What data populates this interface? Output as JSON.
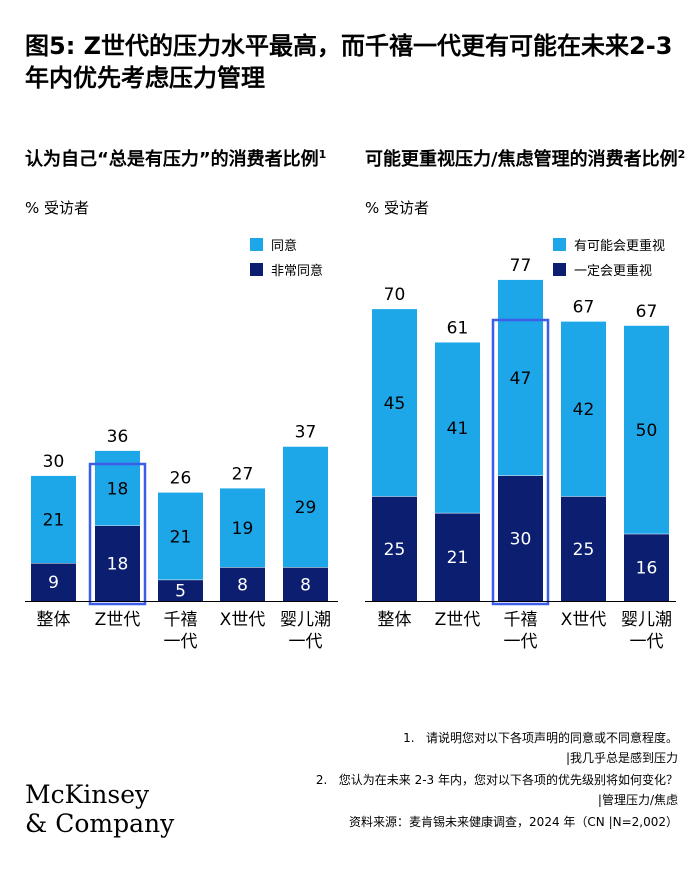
{
  "title": "图5: Z世代的压力水平最高，而千禧一代更有可能在未来2-3 年内优先考虑压力管理",
  "colors": {
    "light": "#1ea7e8",
    "dark": "#0b1e6f",
    "highlight": "#3b5de7"
  },
  "left_panel": {
    "title": "认为自己“总是有压力”的消费者比例",
    "title_sup": "1",
    "subtitle": "% 受访者",
    "legend": [
      "同意",
      "非常同意"
    ]
  },
  "right_panel": {
    "title": "可能更重视压力/焦虑管理的消费者比例",
    "title_sup": "2",
    "subtitle": "% 受访者",
    "legend": [
      "有可能会更重视",
      "一定会更重视"
    ]
  },
  "chart_data": [
    {
      "type": "bar",
      "stacked": true,
      "categories": [
        [
          "整体"
        ],
        [
          "Z世代"
        ],
        [
          "千禧",
          "一代"
        ],
        [
          "X世代"
        ],
        [
          "婴儿潮",
          "一代"
        ]
      ],
      "series": [
        {
          "name": "非常同意",
          "values": [
            9,
            18,
            5,
            8,
            8
          ]
        },
        {
          "name": "同意",
          "values": [
            21,
            18,
            21,
            19,
            29
          ]
        }
      ],
      "totals": [
        30,
        36,
        26,
        27,
        37
      ],
      "highlight_index": 1
    },
    {
      "type": "bar",
      "stacked": true,
      "categories": [
        [
          "整体"
        ],
        [
          "Z世代"
        ],
        [
          "千禧",
          "一代"
        ],
        [
          "X世代"
        ],
        [
          "婴儿潮",
          "一代"
        ]
      ],
      "series": [
        {
          "name": "一定会更重视",
          "values": [
            25,
            21,
            30,
            25,
            16
          ]
        },
        {
          "name": "有可能会更重视",
          "values": [
            45,
            41,
            47,
            42,
            50
          ]
        }
      ],
      "totals": [
        70,
        61,
        77,
        67,
        67
      ],
      "highlight_index": 2
    }
  ],
  "footnotes": {
    "n1": "1.",
    "n1_text": "请说明您对以下各项声明的同意或不同意程度。",
    "n1_line2": "|我几乎总是感到压力",
    "n2": "2.",
    "n2_text": "您认为在未来 2-3 年内，您对以下各项的优先级别将如何变化？",
    "n2_line2": "|管理压力/焦虑",
    "source": "资料来源：麦肯锡未来健康调查，2024 年（CN |N=2,002）"
  },
  "logo": {
    "line1": "McKinsey",
    "line2": "& Company"
  }
}
